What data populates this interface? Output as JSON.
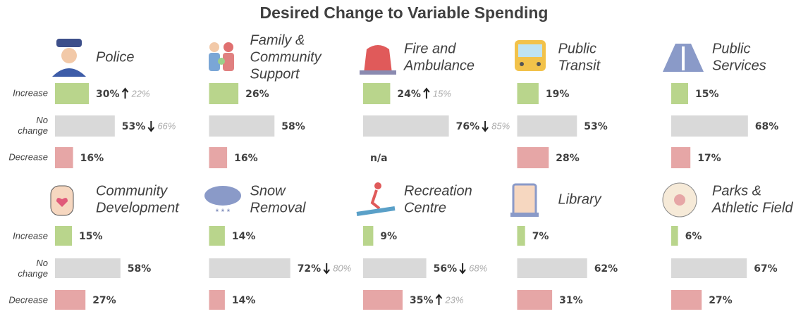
{
  "title": "Desired Change to Variable Spending",
  "categories": [
    [
      "Increase"
    ],
    [
      "No",
      "change"
    ],
    [
      "Decrease"
    ]
  ],
  "chart_data": [
    {
      "type": "bar",
      "title": [
        "Police"
      ],
      "values": [
        30,
        53,
        16
      ],
      "value_labels": [
        "30%",
        "53%",
        "16%"
      ],
      "previous": [
        22,
        66,
        null
      ],
      "previous_labels": [
        "22%",
        "66%",
        null
      ],
      "xlim": [
        0,
        100
      ],
      "colors": [
        "#b9d58c",
        "#d9d9d9",
        "#e6a6a6"
      ]
    },
    {
      "type": "bar",
      "title": [
        "Family &",
        "Community",
        "Support"
      ],
      "values": [
        26,
        58,
        16
      ],
      "value_labels": [
        "26%",
        "58%",
        "16%"
      ],
      "xlim": [
        0,
        100
      ],
      "colors": [
        "#b9d58c",
        "#d9d9d9",
        "#e6a6a6"
      ]
    },
    {
      "type": "bar",
      "title": [
        "Fire and",
        "Ambulance"
      ],
      "values": [
        24,
        76,
        null
      ],
      "value_labels": [
        "24%",
        "76%",
        "n/a"
      ],
      "previous": [
        15,
        85,
        null
      ],
      "previous_labels": [
        "15%",
        "85%",
        null
      ],
      "xlim": [
        0,
        100
      ],
      "colors": [
        "#b9d58c",
        "#d9d9d9",
        "#e6a6a6"
      ]
    },
    {
      "type": "bar",
      "title": [
        "Public",
        "Transit"
      ],
      "values": [
        19,
        53,
        28
      ],
      "value_labels": [
        "19%",
        "53%",
        "28%"
      ],
      "xlim": [
        0,
        100
      ],
      "colors": [
        "#b9d58c",
        "#d9d9d9",
        "#e6a6a6"
      ]
    },
    {
      "type": "bar",
      "title": [
        "Public",
        "Services"
      ],
      "values": [
        15,
        68,
        17
      ],
      "value_labels": [
        "15%",
        "68%",
        "17%"
      ],
      "xlim": [
        0,
        100
      ],
      "colors": [
        "#b9d58c",
        "#d9d9d9",
        "#e6a6a6"
      ]
    },
    {
      "type": "bar",
      "title": [
        "Community",
        "Development"
      ],
      "values": [
        15,
        58,
        27
      ],
      "value_labels": [
        "15%",
        "58%",
        "27%"
      ],
      "xlim": [
        0,
        100
      ],
      "colors": [
        "#b9d58c",
        "#d9d9d9",
        "#e6a6a6"
      ]
    },
    {
      "type": "bar",
      "title": [
        "Snow",
        "Removal"
      ],
      "values": [
        14,
        72,
        14
      ],
      "value_labels": [
        "14%",
        "72%",
        "14%"
      ],
      "previous": [
        null,
        80,
        null
      ],
      "previous_labels": [
        null,
        "80%",
        null
      ],
      "xlim": [
        0,
        100
      ],
      "colors": [
        "#b9d58c",
        "#d9d9d9",
        "#e6a6a6"
      ]
    },
    {
      "type": "bar",
      "title": [
        "Recreation",
        "Centre"
      ],
      "values": [
        9,
        56,
        35
      ],
      "value_labels": [
        "9%",
        "56%",
        "35%"
      ],
      "previous": [
        null,
        68,
        23
      ],
      "previous_labels": [
        null,
        "68%",
        "23%"
      ],
      "xlim": [
        0,
        100
      ],
      "colors": [
        "#b9d58c",
        "#d9d9d9",
        "#e6a6a6"
      ]
    },
    {
      "type": "bar",
      "title": [
        "Library"
      ],
      "values": [
        7,
        62,
        31
      ],
      "value_labels": [
        "7%",
        "62%",
        "31%"
      ],
      "xlim": [
        0,
        100
      ],
      "colors": [
        "#b9d58c",
        "#d9d9d9",
        "#e6a6a6"
      ]
    },
    {
      "type": "bar",
      "title": [
        "Parks &",
        "Athletic Field"
      ],
      "values": [
        6,
        67,
        27
      ],
      "value_labels": [
        "6%",
        "67%",
        "27%"
      ],
      "xlim": [
        0,
        100
      ],
      "colors": [
        "#b9d58c",
        "#d9d9d9",
        "#e6a6a6"
      ]
    }
  ]
}
